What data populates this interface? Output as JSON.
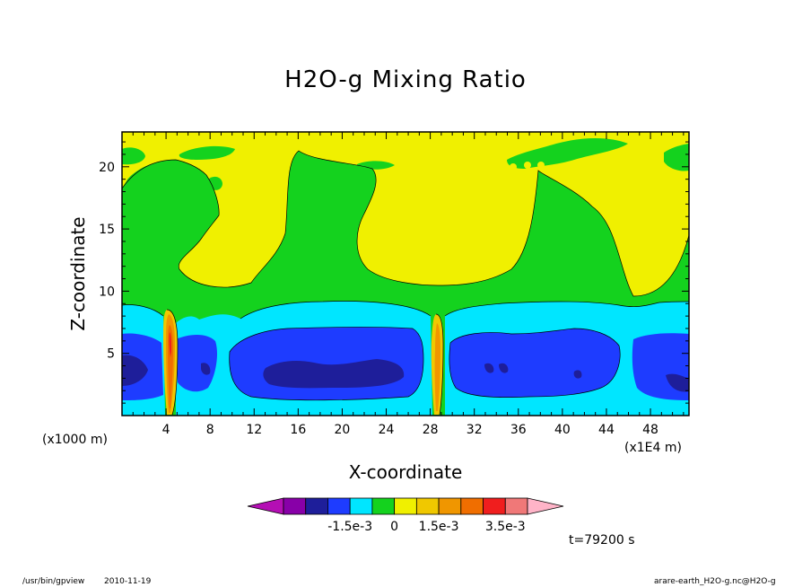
{
  "chart_data": {
    "type": "heatmap",
    "title": "H2O-g Mixing Ratio",
    "xlabel": "X-coordinate",
    "ylabel": "Z-coordinate",
    "x_unit": "(x1E4 m)",
    "y_unit": "(x1000 m)",
    "xlim": [
      0,
      51.5
    ],
    "ylim": [
      0,
      22.8
    ],
    "xticks": [
      "4",
      "8",
      "12",
      "16",
      "20",
      "24",
      "28",
      "32",
      "36",
      "40",
      "44",
      "48"
    ],
    "yticks": [
      "5",
      "10",
      "15",
      "20"
    ],
    "colorbar": {
      "colors": [
        "#b40fb4",
        "#8800a8",
        "#1e1e9a",
        "#1e3cff",
        "#00e6ff",
        "#14d21e",
        "#f0f000",
        "#f0c800",
        "#f09600",
        "#f06e00",
        "#f01e1e",
        "#f07878",
        "#ffb4c8"
      ],
      "labels": [
        "-1.5e-3",
        "0",
        "1.5e-3",
        "3.5e-3"
      ]
    },
    "time_label": "t=79200 s"
  },
  "footer": {
    "program": "/usr/bin/gpview",
    "date": "2010-11-19",
    "source": "arare-earth_H2O-g.nc@H2O-g"
  }
}
